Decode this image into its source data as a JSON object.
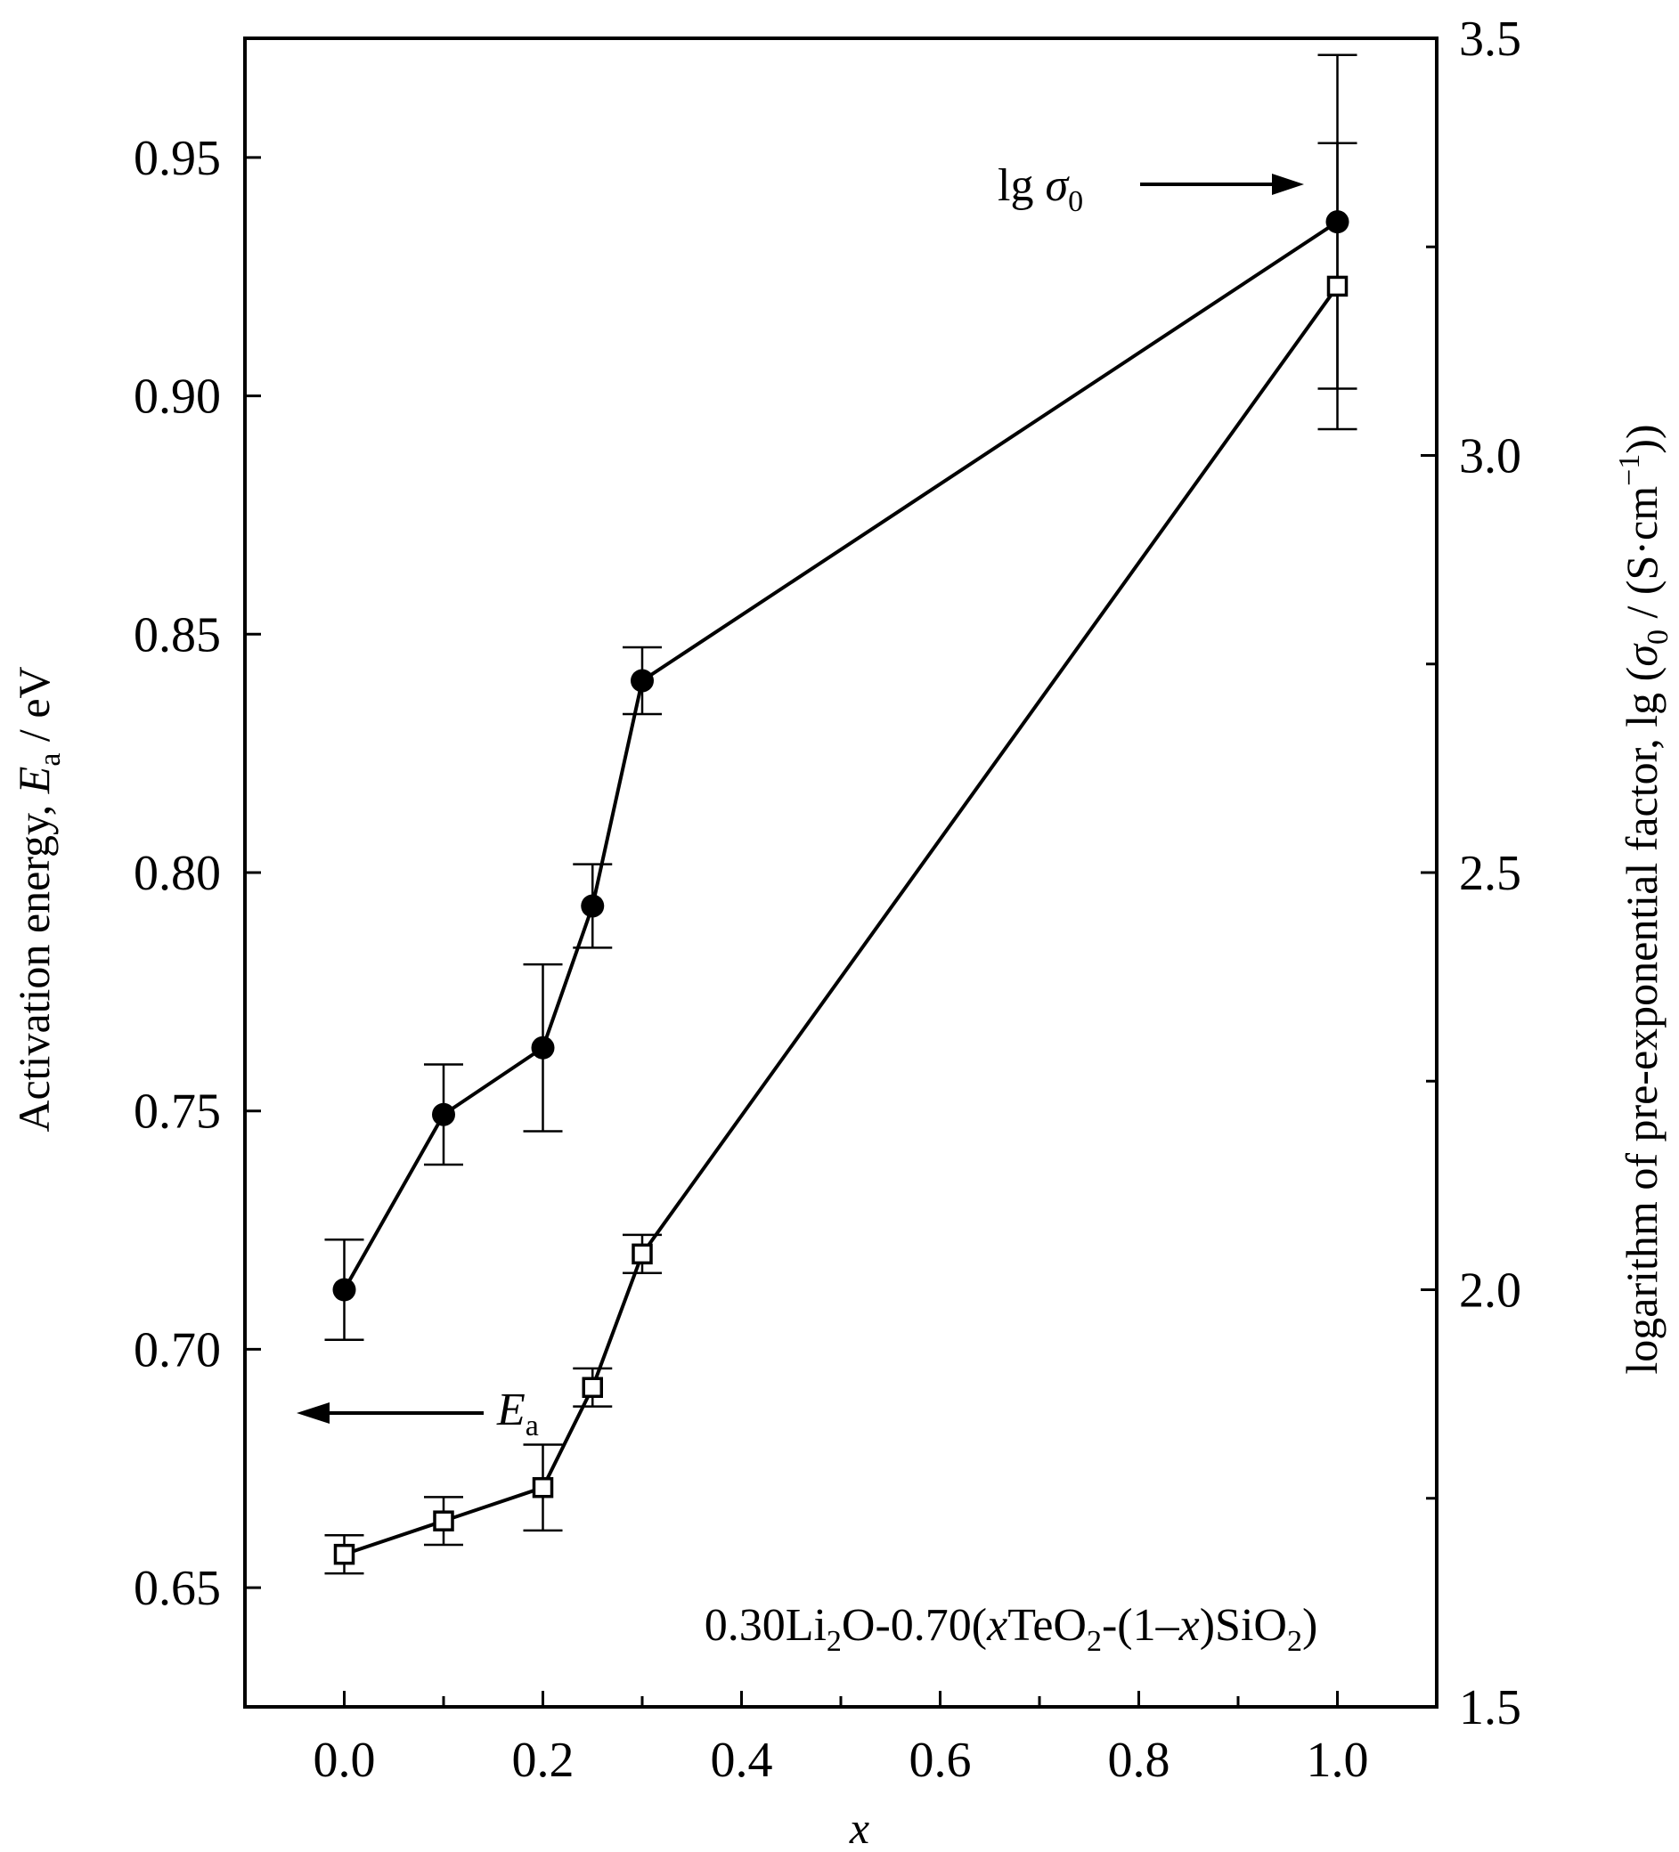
{
  "chart_data": {
    "type": "line",
    "note": "0.30Li2O-0.70(xTeO2-(1–x)SiO2)",
    "x_axis": {
      "title": "x",
      "range": [
        -0.1,
        1.1
      ],
      "ticks": [
        0.0,
        0.2,
        0.4,
        0.6,
        0.8,
        1.0
      ],
      "tick_labels": [
        "0.0",
        "0.2",
        "0.4",
        "0.6",
        "0.8",
        "1.0"
      ],
      "minor_step": 0.1
    },
    "y_left": {
      "title": "Activation energy, Ea / eV",
      "range": [
        0.625,
        0.975
      ],
      "ticks": [
        0.65,
        0.7,
        0.75,
        0.8,
        0.85,
        0.9,
        0.95
      ],
      "tick_labels": [
        "0.65",
        "0.70",
        "0.75",
        "0.80",
        "0.85",
        "0.90",
        "0.95"
      ]
    },
    "y_right": {
      "title": "logarithm of pre-exponential factor, lg (σ0 / (S·cm⁻¹))",
      "range": [
        1.5,
        3.5
      ],
      "ticks": [
        1.5,
        2.0,
        2.5,
        3.0,
        3.5
      ],
      "tick_labels": [
        "1.5",
        "2.0",
        "2.5",
        "3.0",
        "3.5"
      ],
      "minor_step": 0.25
    },
    "series": [
      {
        "name": "lg σ0",
        "axis": "right",
        "marker": "filled-circle",
        "x": [
          0.0,
          0.1,
          0.2,
          0.25,
          0.3,
          1.0
        ],
        "y": [
          2.0,
          2.21,
          2.29,
          2.46,
          2.73,
          3.28
        ],
        "err": [
          0.06,
          0.06,
          0.1,
          0.05,
          0.04,
          0.2
        ]
      },
      {
        "name": "Ea",
        "axis": "left",
        "marker": "open-square",
        "x": [
          0.0,
          0.1,
          0.2,
          0.25,
          0.3,
          1.0
        ],
        "y": [
          0.657,
          0.664,
          0.671,
          0.692,
          0.72,
          0.923
        ],
        "err": [
          0.004,
          0.005,
          0.009,
          0.004,
          0.004,
          0.03
        ]
      }
    ],
    "annotations": {
      "lg_sigma": {
        "prefix": "lg ",
        "symbol": "σ",
        "sub": "0"
      },
      "ea": {
        "symbol": "E",
        "sub": "a"
      }
    }
  }
}
